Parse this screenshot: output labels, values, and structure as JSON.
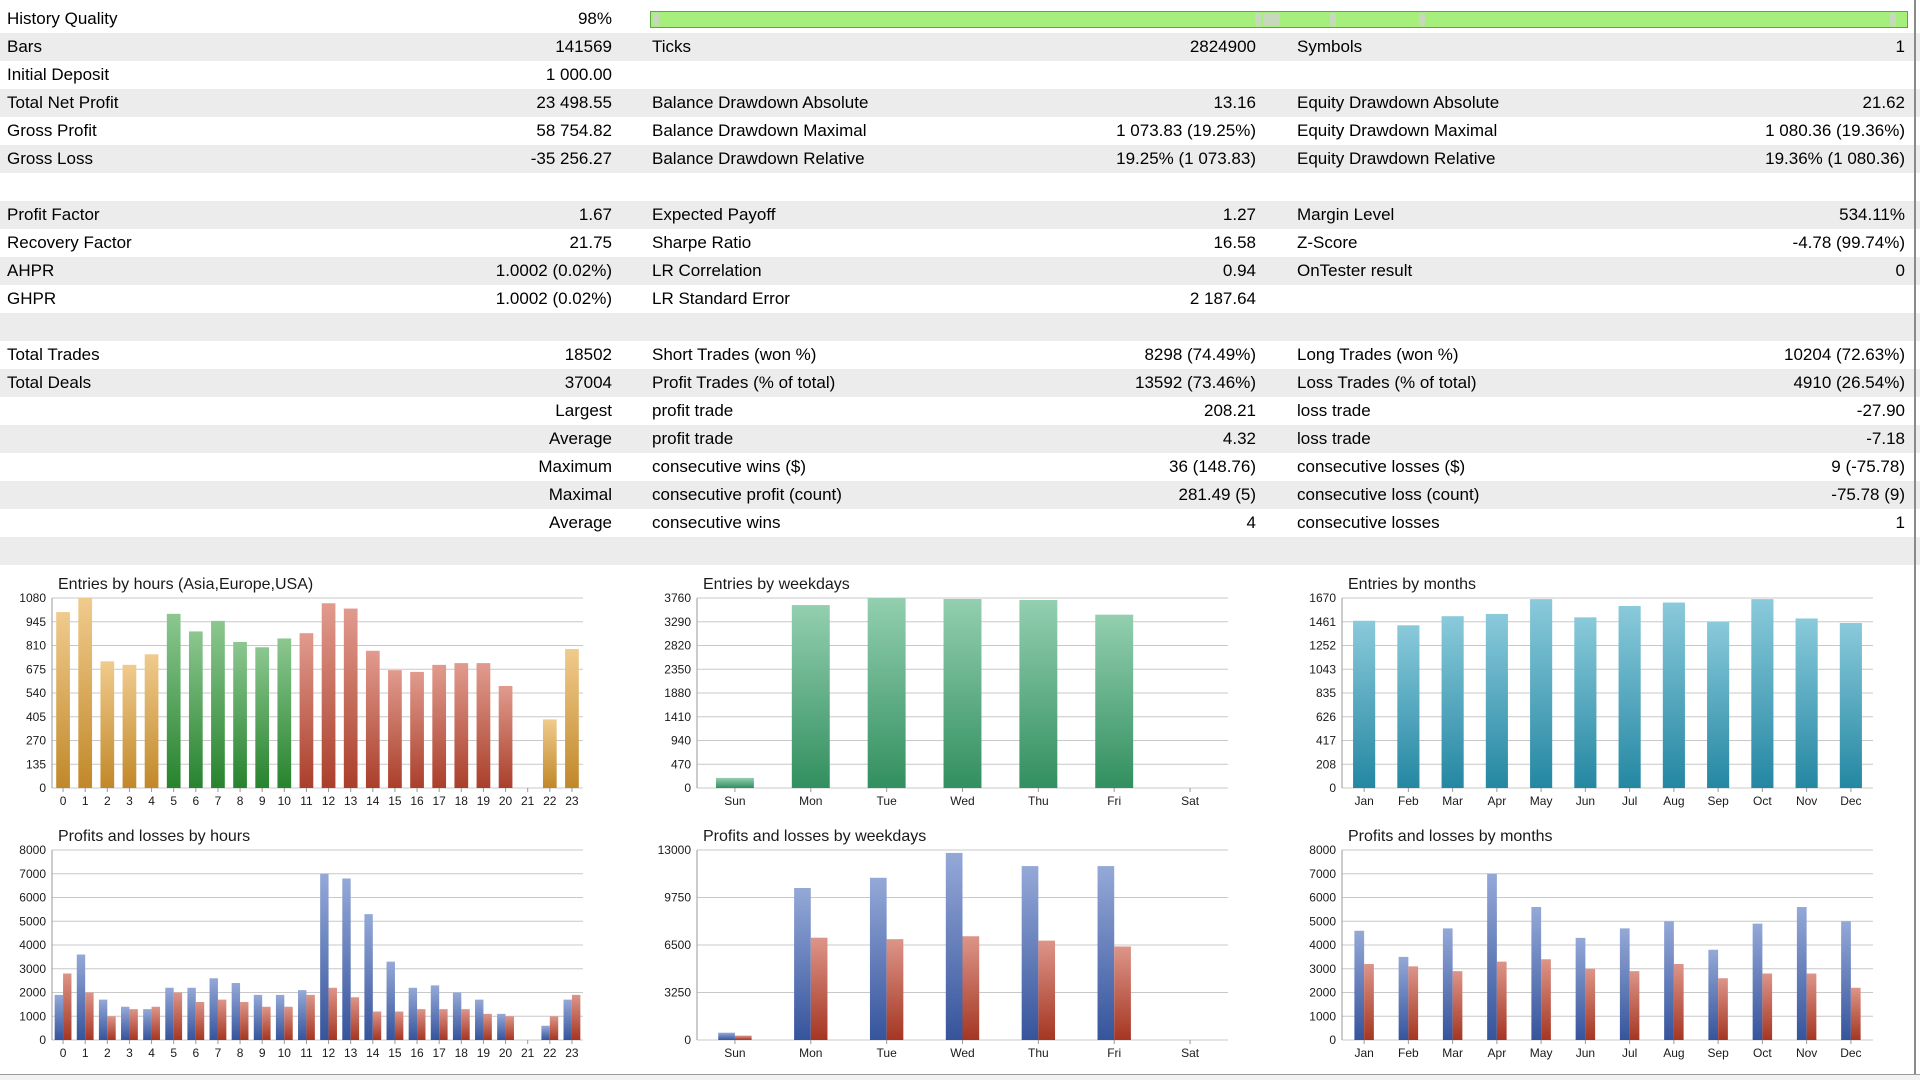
{
  "report": {
    "rows": [
      {
        "l1": "History Quality",
        "v1": "98%",
        "alt": false,
        "quality": true
      },
      {
        "l1": "Bars",
        "v1": "141569",
        "l2": "Ticks",
        "v2": "2824900",
        "l3": "Symbols",
        "v3": "1",
        "alt": true
      },
      {
        "l1": "Initial Deposit",
        "v1": "1 000.00",
        "alt": false
      },
      {
        "l1": "Total Net Profit",
        "v1": "23 498.55",
        "l2": "Balance Drawdown Absolute",
        "v2": "13.16",
        "l3": "Equity Drawdown Absolute",
        "v3": "21.62",
        "alt": true
      },
      {
        "l1": "Gross Profit",
        "v1": "58 754.82",
        "l2": "Balance Drawdown Maximal",
        "v2": "1 073.83 (19.25%)",
        "l3": "Equity Drawdown Maximal",
        "v3": "1 080.36 (19.36%)",
        "alt": false
      },
      {
        "l1": "Gross Loss",
        "v1": "-35 256.27",
        "l2": "Balance Drawdown Relative",
        "v2": "19.25% (1 073.83)",
        "l3": "Equity Drawdown Relative",
        "v3": "19.36% (1 080.36)",
        "alt": true
      },
      {
        "alt": false
      },
      {
        "l1": "Profit Factor",
        "v1": "1.67",
        "l2": "Expected Payoff",
        "v2": "1.27",
        "l3": "Margin Level",
        "v3": "534.11%",
        "alt": true
      },
      {
        "l1": "Recovery Factor",
        "v1": "21.75",
        "l2": "Sharpe Ratio",
        "v2": "16.58",
        "l3": "Z-Score",
        "v3": "-4.78 (99.74%)",
        "alt": false
      },
      {
        "l1": "AHPR",
        "v1": "1.0002 (0.02%)",
        "l2": "LR Correlation",
        "v2": "0.94",
        "l3": "OnTester result",
        "v3": "0",
        "alt": true
      },
      {
        "l1": "GHPR",
        "v1": "1.0002 (0.02%)",
        "l2": "LR Standard Error",
        "v2": "2 187.64",
        "alt": false
      },
      {
        "alt": true
      },
      {
        "l1": "Total Trades",
        "v1": "18502",
        "l2": "Short Trades (won %)",
        "v2": "8298 (74.49%)",
        "l3": "Long Trades (won %)",
        "v3": "10204 (72.63%)",
        "alt": false
      },
      {
        "l1": "Total Deals",
        "v1": "37004",
        "l2": "Profit Trades (% of total)",
        "v2": "13592 (73.46%)",
        "l3": "Loss Trades (% of total)",
        "v3": "4910 (26.54%)",
        "alt": true
      },
      {
        "v1": "Largest",
        "l2": "profit trade",
        "v2": "208.21",
        "l3": "loss trade",
        "v3": "-27.90",
        "alt": false
      },
      {
        "v1": "Average",
        "l2": "profit trade",
        "v2": "4.32",
        "l3": "loss trade",
        "v3": "-7.18",
        "alt": true
      },
      {
        "v1": "Maximum",
        "l2": "consecutive wins ($)",
        "v2": "36 (148.76)",
        "l3": "consecutive losses ($)",
        "v3": "9 (-75.78)",
        "alt": false
      },
      {
        "v1": "Maximal",
        "l2": "consecutive profit (count)",
        "v2": "281.49 (5)",
        "l3": "consecutive loss (count)",
        "v3": "-75.78 (9)",
        "alt": true
      },
      {
        "v1": "Average",
        "l2": "consecutive wins",
        "v2": "4",
        "l3": "consecutive losses",
        "v3": "1",
        "alt": false
      },
      {
        "alt": true
      }
    ]
  },
  "colors": {
    "quality_fill": "#a6ef7c",
    "asia": "#e3a030",
    "europe": "#2e9a36",
    "usa": "#c84a32",
    "weekday": "#3ba870",
    "month": "#2a9fbe",
    "profit": "#3f63b8",
    "loss": "#c23f28",
    "grid": "#c8c8c8"
  },
  "chart_data": [
    {
      "id": "entries-hours",
      "type": "bar",
      "title": "Entries by hours (Asia,Europe,USA)",
      "categories": [
        "0",
        "1",
        "2",
        "3",
        "4",
        "5",
        "6",
        "7",
        "8",
        "9",
        "10",
        "11",
        "12",
        "13",
        "14",
        "15",
        "16",
        "17",
        "18",
        "19",
        "20",
        "21",
        "22",
        "23"
      ],
      "values": [
        1000,
        1080,
        720,
        700,
        760,
        990,
        890,
        950,
        830,
        800,
        850,
        880,
        1050,
        1020,
        780,
        670,
        660,
        700,
        710,
        710,
        580,
        0,
        390,
        790
      ],
      "bar_colors": [
        "asia",
        "asia",
        "asia",
        "asia",
        "asia",
        "europe",
        "europe",
        "europe",
        "europe",
        "europe",
        "europe",
        "usa",
        "usa",
        "usa",
        "usa",
        "usa",
        "usa",
        "usa",
        "usa",
        "usa",
        "usa",
        "usa",
        "asia",
        "asia"
      ],
      "yticks": [
        "1080",
        "945",
        "810",
        "675",
        "540",
        "405",
        "270",
        "135",
        "0"
      ],
      "ylim": [
        0,
        1080
      ]
    },
    {
      "id": "entries-weekdays",
      "type": "bar",
      "title": "Entries by weekdays",
      "categories": [
        "Sun",
        "Mon",
        "Tue",
        "Wed",
        "Thu",
        "Fri",
        "Sat"
      ],
      "values": [
        200,
        3620,
        3760,
        3740,
        3720,
        3430,
        0
      ],
      "yticks": [
        "3760",
        "3290",
        "2820",
        "2350",
        "1880",
        "1410",
        "940",
        "470",
        "0"
      ],
      "ylim": [
        0,
        3760
      ]
    },
    {
      "id": "entries-months",
      "type": "bar",
      "title": "Entries by months",
      "categories": [
        "Jan",
        "Feb",
        "Mar",
        "Apr",
        "May",
        "Jun",
        "Jul",
        "Aug",
        "Sep",
        "Oct",
        "Nov",
        "Dec"
      ],
      "values": [
        1470,
        1430,
        1510,
        1530,
        1660,
        1500,
        1600,
        1630,
        1460,
        1660,
        1490,
        1450
      ],
      "yticks": [
        "1670",
        "1461",
        "1252",
        "1043",
        "835",
        "626",
        "417",
        "208",
        "0"
      ],
      "ylim": [
        0,
        1670
      ]
    },
    {
      "id": "pl-hours",
      "type": "bar",
      "title": "Profits and losses by hours",
      "categories": [
        "0",
        "1",
        "2",
        "3",
        "4",
        "5",
        "6",
        "7",
        "8",
        "9",
        "10",
        "11",
        "12",
        "13",
        "14",
        "15",
        "16",
        "17",
        "18",
        "19",
        "20",
        "21",
        "22",
        "23"
      ],
      "series": [
        {
          "key": "profit",
          "values": [
            1900,
            3600,
            1700,
            1400,
            1300,
            2200,
            2200,
            2600,
            2400,
            1900,
            1900,
            2100,
            7000,
            6800,
            5300,
            3300,
            2200,
            2300,
            2000,
            1700,
            1100,
            0,
            600,
            1700
          ]
        },
        {
          "key": "loss",
          "values": [
            2800,
            2000,
            1000,
            1300,
            1400,
            2000,
            1600,
            1700,
            1600,
            1400,
            1400,
            1900,
            2200,
            1800,
            1200,
            1200,
            1300,
            1300,
            1300,
            1100,
            1000,
            0,
            1000,
            1900
          ]
        }
      ],
      "yticks": [
        "8000",
        "7000",
        "6000",
        "5000",
        "4000",
        "3000",
        "2000",
        "1000",
        "0"
      ],
      "ylim": [
        0,
        8000
      ]
    },
    {
      "id": "pl-weekdays",
      "type": "bar",
      "title": "Profits and losses by weekdays",
      "categories": [
        "Sun",
        "Mon",
        "Tue",
        "Wed",
        "Thu",
        "Fri",
        "Sat"
      ],
      "series": [
        {
          "key": "profit",
          "values": [
            500,
            10400,
            11100,
            12800,
            11900,
            11900,
            0
          ]
        },
        {
          "key": "loss",
          "values": [
            300,
            7000,
            6900,
            7100,
            6800,
            6400,
            0
          ]
        }
      ],
      "yticks": [
        "13000",
        "9750",
        "6500",
        "3250",
        "0"
      ],
      "ylim": [
        0,
        13000
      ]
    },
    {
      "id": "pl-months",
      "type": "bar",
      "title": "Profits and losses by months",
      "categories": [
        "Jan",
        "Feb",
        "Mar",
        "Apr",
        "May",
        "Jun",
        "Jul",
        "Aug",
        "Sep",
        "Oct",
        "Nov",
        "Dec"
      ],
      "series": [
        {
          "key": "profit",
          "values": [
            4600,
            3500,
            4700,
            7000,
            5600,
            4300,
            4700,
            5000,
            3800,
            4900,
            5600,
            5000
          ]
        },
        {
          "key": "loss",
          "values": [
            3200,
            3100,
            2900,
            3300,
            3400,
            3000,
            2900,
            3200,
            2600,
            2800,
            2800,
            2200
          ]
        }
      ],
      "yticks": [
        "8000",
        "7000",
        "6000",
        "5000",
        "4000",
        "3000",
        "2000",
        "1000",
        "0"
      ],
      "ylim": [
        0,
        8000
      ]
    }
  ]
}
